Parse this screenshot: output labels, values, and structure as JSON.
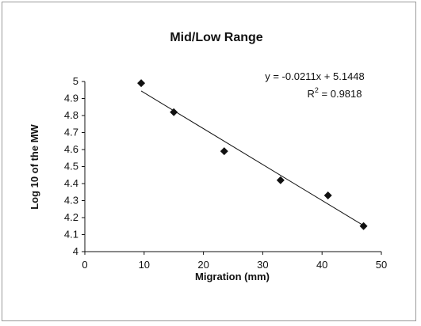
{
  "chart_data": {
    "type": "scatter",
    "title": "Mid/Low Range",
    "xlabel": "Migration (mm)",
    "ylabel": "Log 10 of the MW",
    "xlim": [
      0,
      50
    ],
    "ylim": [
      4,
      5
    ],
    "xticks": [
      "0",
      "10",
      "20",
      "30",
      "40",
      "50"
    ],
    "yticks": [
      "4",
      "4.1",
      "4.2",
      "4.3",
      "4.4",
      "4.5",
      "4.6",
      "4.7",
      "4.8",
      "4.9",
      "5"
    ],
    "grid": false,
    "legend": "none",
    "marker": "diamond",
    "marker_color": "#111111",
    "x": [
      9.5,
      15,
      23.5,
      33,
      41,
      47
    ],
    "y": [
      4.99,
      4.82,
      4.59,
      4.42,
      4.33,
      4.15
    ],
    "trendline": {
      "type": "linear",
      "slope": -0.0211,
      "intercept": 5.1448,
      "x_range": [
        9.5,
        47
      ]
    },
    "annotations": {
      "equation": "y = -0.0211x + 5.1448",
      "r2_prefix": "R",
      "r2_sup": "2",
      "r2_value": " = 0.9818"
    }
  }
}
